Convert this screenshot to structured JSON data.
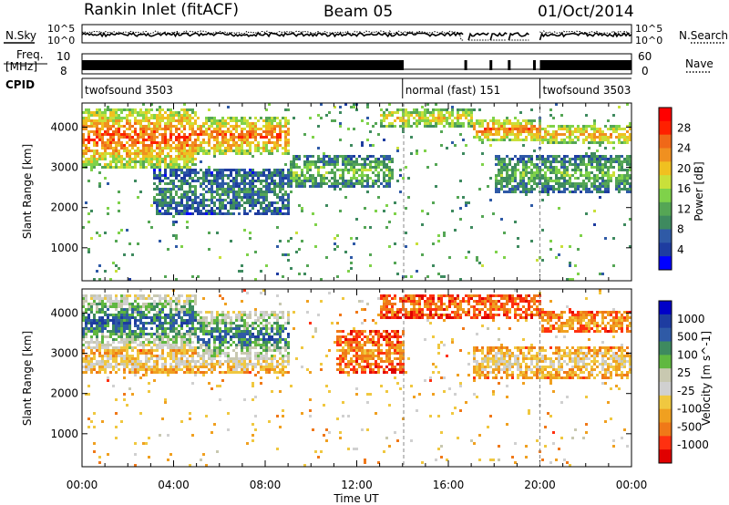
{
  "header": {
    "station": "Rankin Inlet (fitACF)",
    "beam": "Beam 05",
    "date": "01/Oct/2014"
  },
  "noise_panel": {
    "left_label": "N.Sky",
    "right_label": "N.Search",
    "left_ticks": [
      "10^5",
      "10^0"
    ],
    "right_ticks": [
      "10^5",
      "10^0"
    ]
  },
  "freq_panel": {
    "left_label_1": "Freq.",
    "left_label_2": "[MHz]",
    "right_label": "Nave",
    "left_ticks": [
      "10",
      "8"
    ],
    "right_ticks": [
      "60",
      "0"
    ]
  },
  "cpid_panel": {
    "label": "CPID",
    "segments": [
      {
        "label": "twofsound 3503",
        "start_h": 0,
        "end_h": 14.0
      },
      {
        "label": "normal (fast) 151",
        "start_h": 14.0,
        "end_h": 20.0
      },
      {
        "label": "twofsound 3503",
        "start_h": 20.0,
        "end_h": 24.0
      }
    ]
  },
  "colors": {
    "power": [
      "#0000ff",
      "#1e3ca0",
      "#2f5aa6",
      "#3e8a5f",
      "#55a655",
      "#7fd24a",
      "#c9e03a",
      "#f0c020",
      "#f09020",
      "#f06818",
      "#ff2000",
      "#ff0000"
    ],
    "velocity": [
      "#e00000",
      "#ff3010",
      "#f07818",
      "#f0a020",
      "#f0c840",
      "#d0d0d0",
      "#c8c8b0",
      "#60b840",
      "#3e8a5f",
      "#2f5aa6",
      "#1e3ca0",
      "#0000c8"
    ]
  },
  "chart_data": [
    {
      "type": "heatmap",
      "title": "Power",
      "xlabel": "",
      "ylabel": "Slant Range [km]",
      "x_ticks": [
        "00:00",
        "04:00",
        "08:00",
        "12:00",
        "16:00",
        "20:00",
        "00:00"
      ],
      "y_ticks": [
        "1000",
        "2000",
        "3000",
        "4000"
      ],
      "xlim_h": [
        0,
        24
      ],
      "ylim_km": [
        180,
        4600
      ],
      "colorbar": {
        "label": "Power [dB]",
        "ticks": [
          "28",
          "24",
          "20",
          "16",
          "12",
          "8",
          "4"
        ],
        "range_db": [
          0,
          32
        ]
      },
      "bands": [
        {
          "t0": 0,
          "t1": 5,
          "r0": 300,
          "r1": 1800,
          "level": 0.82
        },
        {
          "t0": 5,
          "t1": 9,
          "r0": 500,
          "r1": 1500,
          "level": 0.78
        },
        {
          "t0": 9,
          "t1": 13.5,
          "r0": 1500,
          "r1": 2300,
          "level": 0.45
        },
        {
          "t0": 13,
          "t1": 17,
          "r0": 300,
          "r1": 800,
          "level": 0.62
        },
        {
          "t0": 17,
          "t1": 20,
          "r0": 600,
          "r1": 1100,
          "level": 0.8
        },
        {
          "t0": 18,
          "t1": 24,
          "r0": 1500,
          "r1": 2400,
          "level": 0.42
        },
        {
          "t0": 20,
          "t1": 24,
          "r0": 700,
          "r1": 1200,
          "level": 0.7
        },
        {
          "t0": 3,
          "t1": 9,
          "r0": 1800,
          "r1": 3000,
          "level": 0.3
        }
      ]
    },
    {
      "type": "heatmap",
      "title": "Velocity",
      "xlabel": "Time UT",
      "ylabel": "Slant Range [km]",
      "x_ticks": [
        "00:00",
        "04:00",
        "08:00",
        "12:00",
        "16:00",
        "20:00",
        "00:00"
      ],
      "y_ticks": [
        "1000",
        "2000",
        "3000",
        "4000"
      ],
      "xlim_h": [
        0,
        24
      ],
      "ylim_km": [
        180,
        4600
      ],
      "colorbar": {
        "label": "Velocity [m s^-1]",
        "ticks": [
          "1000",
          "500",
          "100",
          "25",
          "-25",
          "-100",
          "-500",
          "-1000"
        ]
      },
      "bands": [
        {
          "t0": 0,
          "t1": 5,
          "r0": 300,
          "r1": 1700,
          "level": 0.8
        },
        {
          "t0": 5,
          "t1": 9,
          "r0": 700,
          "r1": 2000,
          "level": 0.78
        },
        {
          "t0": 0,
          "t1": 9,
          "r0": 1700,
          "r1": 2300,
          "level": 0.45
        },
        {
          "t0": 11,
          "t1": 14,
          "r0": 1200,
          "r1": 2300,
          "level": 0.25
        },
        {
          "t0": 13,
          "t1": 20,
          "r0": 300,
          "r1": 900,
          "level": 0.22
        },
        {
          "t0": 17,
          "t1": 24,
          "r0": 1600,
          "r1": 2400,
          "level": 0.45
        },
        {
          "t0": 20,
          "t1": 24,
          "r0": 700,
          "r1": 1300,
          "level": 0.3
        }
      ]
    }
  ]
}
